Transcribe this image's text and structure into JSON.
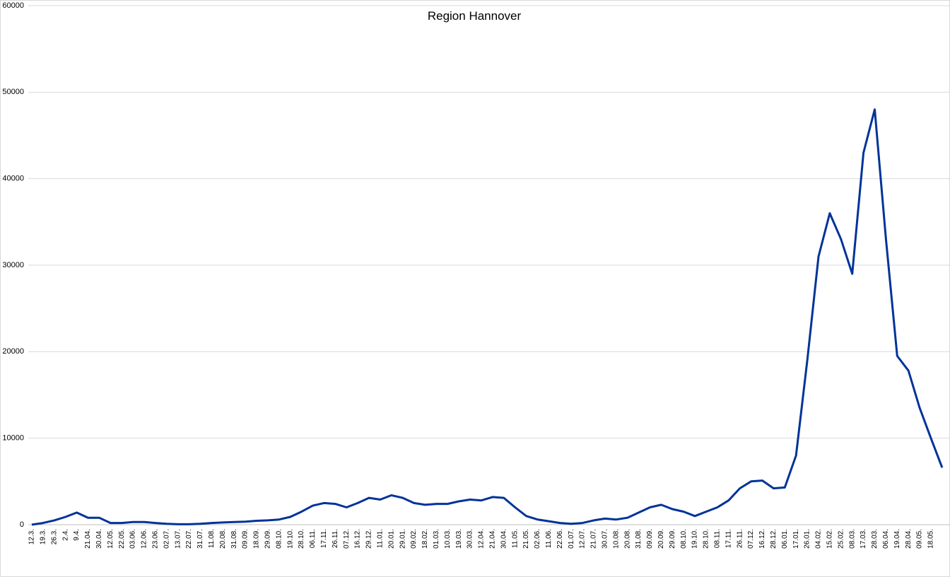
{
  "chart_data": {
    "type": "line",
    "title": "Region Hannover",
    "categories": [
      "12.3.",
      "19.3.",
      "26.3.",
      "2.4.",
      "9.4.",
      "21.04.",
      "30.04.",
      "12.05.",
      "22.05.",
      "03.06.",
      "12.06.",
      "23.06.",
      "02.07.",
      "13.07.",
      "22.07.",
      "31.07.",
      "11.08.",
      "20.08.",
      "31.08.",
      "09.09.",
      "18.09.",
      "29.09.",
      "08.10.",
      "19.10.",
      "28.10.",
      "06.11.",
      "17.11.",
      "26.11.",
      "07.12.",
      "16.12.",
      "29.12.",
      "11.01.",
      "20.01.",
      "29.01.",
      "09.02.",
      "18.02.",
      "01.03.",
      "10.03.",
      "19.03.",
      "30.03.",
      "12.04.",
      "21.04.",
      "30.04.",
      "11.05.",
      "21.05.",
      "02.06.",
      "11.06.",
      "22.06.",
      "01.07.",
      "12.07.",
      "21.07.",
      "30.07.",
      "10.08.",
      "20.08.",
      "31.08.",
      "09.09.",
      "20.09.",
      "29.09.",
      "08.10.",
      "19.10.",
      "28.10.",
      "08.11.",
      "17.11.",
      "26.11.",
      "07.12.",
      "16.12.",
      "28.12.",
      "06.01.",
      "17.01.",
      "26.01.",
      "04.02.",
      "15.02.",
      "25.02.",
      "08.03.",
      "17.03.",
      "28.03.",
      "06.04.",
      "19.04.",
      "28.04.",
      "09.05.",
      "18.05.",
      null
    ],
    "series": [
      {
        "color": "#003399",
        "values": [
          0,
          200,
          500,
          900,
          1400,
          800,
          800,
          200,
          200,
          300,
          300,
          200,
          100,
          50,
          50,
          100,
          200,
          250,
          300,
          350,
          450,
          500,
          600,
          900,
          1500,
          2200,
          2500,
          2400,
          2000,
          2500,
          3100,
          2900,
          3400,
          3100,
          2500,
          2300,
          2400,
          2400,
          2700,
          2900,
          2800,
          3200,
          3100,
          2000,
          1000,
          600,
          400,
          200,
          100,
          200,
          500,
          700,
          600,
          800,
          1400,
          2000,
          2300,
          1800,
          1500,
          1000,
          1500,
          2000,
          2800,
          4200,
          5000,
          5100,
          4200,
          4300,
          8000,
          19000,
          31000,
          36000,
          33000,
          29000,
          43000,
          48000,
          33000,
          19500,
          17800,
          13500,
          10000,
          6600
        ]
      }
    ],
    "ylim": [
      0,
      60000
    ],
    "yticks": [
      0,
      10000,
      20000,
      30000,
      40000,
      50000,
      60000
    ],
    "grid": true
  }
}
